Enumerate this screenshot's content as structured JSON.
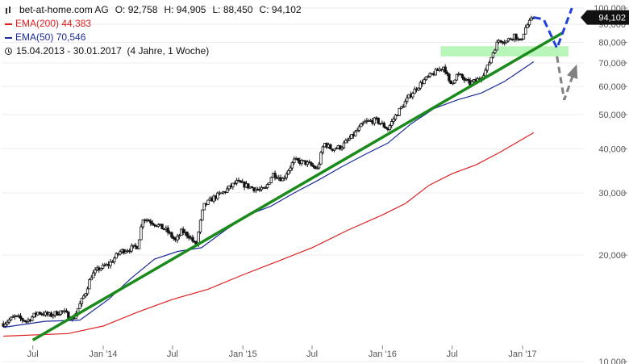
{
  "legend": {
    "symbol": "bet-at-home.com AG",
    "open_label": "O: 92,758",
    "high_label": "H: 94,905",
    "low_label": "L: 88,450",
    "close_label": "C: 94,102",
    "ema200_label": "EMA(200)",
    "ema200_value": "44,383",
    "ema50_label": "EMA(50)",
    "ema50_value": "70,546",
    "period_label": "15.04.2013 - 30.01.2017",
    "period_length": "(4 Jahre, 1 Woche)"
  },
  "price_tag": "94,102",
  "colors": {
    "ema200": "#e02020",
    "ema50": "#1a2a9a",
    "trendline": "#1a8a1a",
    "zone": "#b8f5b8",
    "blue_projection": "#1f3fd8",
    "grey_projection": "#808080",
    "candle": "#111111"
  },
  "chart_data": {
    "type": "candlestick",
    "y_scale": "log",
    "ylim": [
      10,
      100
    ],
    "y_ticks": [
      {
        "value": 10,
        "label": "10,000"
      },
      {
        "value": 20,
        "label": "20,000"
      },
      {
        "value": 30,
        "label": "30,000"
      },
      {
        "value": 40,
        "label": "40,000"
      },
      {
        "value": 50,
        "label": "50,000"
      },
      {
        "value": 60,
        "label": "60,000"
      },
      {
        "value": 70,
        "label": "70,000"
      },
      {
        "value": 80,
        "label": "80,000"
      },
      {
        "value": 90,
        "label": "90,000"
      },
      {
        "value": 100,
        "label": "100,000"
      }
    ],
    "x_range": [
      "2013-04-15",
      "2017-01-30"
    ],
    "x_ticks": [
      {
        "date": "2013-07-01",
        "label": "Jul"
      },
      {
        "date": "2014-01-01",
        "label": "Jan '14"
      },
      {
        "date": "2014-07-01",
        "label": "Jul"
      },
      {
        "date": "2015-01-01",
        "label": "Jan '15"
      },
      {
        "date": "2015-07-01",
        "label": "Jul"
      },
      {
        "date": "2016-01-01",
        "label": "Jan '16"
      },
      {
        "date": "2016-07-01",
        "label": "Jul"
      },
      {
        "date": "2017-01-01",
        "label": "Jan '17"
      }
    ],
    "price_path": [
      [
        "2013-04-15",
        12.8
      ],
      [
        "2013-05-15",
        13.4
      ],
      [
        "2013-06-15",
        13.0
      ],
      [
        "2013-07-15",
        13.8
      ],
      [
        "2013-08-15",
        13.5
      ],
      [
        "2013-09-15",
        13.9
      ],
      [
        "2013-10-15",
        13.2
      ],
      [
        "2013-11-15",
        15.6
      ],
      [
        "2013-12-01",
        17.5
      ],
      [
        "2013-12-20",
        18.3
      ],
      [
        "2014-01-15",
        18.8
      ],
      [
        "2014-02-15",
        20.5
      ],
      [
        "2014-03-15",
        20.9
      ],
      [
        "2014-04-01",
        21.2
      ],
      [
        "2014-04-15",
        25.5
      ],
      [
        "2014-05-15",
        24.6
      ],
      [
        "2014-06-15",
        23.5
      ],
      [
        "2014-07-10",
        21.9
      ],
      [
        "2014-07-25",
        23.4
      ],
      [
        "2014-08-15",
        22.6
      ],
      [
        "2014-09-01",
        21.2
      ],
      [
        "2014-09-20",
        27.5
      ],
      [
        "2014-10-15",
        29.0
      ],
      [
        "2014-11-15",
        30.3
      ],
      [
        "2014-12-15",
        32.2
      ],
      [
        "2015-01-15",
        31.3
      ],
      [
        "2015-02-15",
        30.5
      ],
      [
        "2015-03-01",
        30.8
      ],
      [
        "2015-03-20",
        34.0
      ],
      [
        "2015-04-15",
        32.8
      ],
      [
        "2015-05-15",
        37.0
      ],
      [
        "2015-06-15",
        36.5
      ],
      [
        "2015-07-15",
        35.0
      ],
      [
        "2015-08-01",
        41.5
      ],
      [
        "2015-08-20",
        40.0
      ],
      [
        "2015-09-15",
        40.5
      ],
      [
        "2015-10-15",
        43.5
      ],
      [
        "2015-11-15",
        47.5
      ],
      [
        "2015-12-15",
        48.2
      ],
      [
        "2016-01-15",
        45.5
      ],
      [
        "2016-02-01",
        49.0
      ],
      [
        "2016-02-20",
        52.5
      ],
      [
        "2016-03-15",
        57.0
      ],
      [
        "2016-04-15",
        62.0
      ],
      [
        "2016-05-15",
        65.5
      ],
      [
        "2016-06-10",
        68.5
      ],
      [
        "2016-06-25",
        60.5
      ],
      [
        "2016-07-15",
        65.0
      ],
      [
        "2016-08-15",
        61.0
      ],
      [
        "2016-09-10",
        63.0
      ],
      [
        "2016-09-30",
        67.5
      ],
      [
        "2016-10-20",
        77.0
      ],
      [
        "2016-11-01",
        81.5
      ],
      [
        "2016-11-20",
        80.5
      ],
      [
        "2016-12-10",
        84.0
      ],
      [
        "2016-12-25",
        80.0
      ],
      [
        "2017-01-10",
        88.5
      ],
      [
        "2017-01-30",
        94.1
      ]
    ],
    "ema50": [
      [
        "2013-04-15",
        12.5
      ],
      [
        "2013-08-01",
        13.0
      ],
      [
        "2013-11-01",
        13.1
      ],
      [
        "2014-01-15",
        15.0
      ],
      [
        "2014-03-15",
        17.2
      ],
      [
        "2014-05-15",
        19.5
      ],
      [
        "2014-07-15",
        20.5
      ],
      [
        "2014-09-15",
        21.0
      ],
      [
        "2014-11-15",
        23.5
      ],
      [
        "2015-01-15",
        26.0
      ],
      [
        "2015-03-15",
        27.5
      ],
      [
        "2015-05-15",
        30.0
      ],
      [
        "2015-07-15",
        32.5
      ],
      [
        "2015-09-15",
        35.5
      ],
      [
        "2015-11-15",
        38.5
      ],
      [
        "2016-01-15",
        41.5
      ],
      [
        "2016-03-15",
        47.0
      ],
      [
        "2016-05-15",
        52.0
      ],
      [
        "2016-07-15",
        55.0
      ],
      [
        "2016-09-15",
        57.5
      ],
      [
        "2016-11-15",
        62.0
      ],
      [
        "2017-01-30",
        70.5
      ]
    ],
    "ema200": [
      [
        "2013-04-15",
        11.8
      ],
      [
        "2013-10-01",
        12.0
      ],
      [
        "2014-01-01",
        12.6
      ],
      [
        "2014-04-01",
        13.8
      ],
      [
        "2014-07-01",
        15.0
      ],
      [
        "2014-10-01",
        16.0
      ],
      [
        "2015-01-01",
        17.6
      ],
      [
        "2015-04-01",
        19.2
      ],
      [
        "2015-07-01",
        21.0
      ],
      [
        "2015-10-01",
        23.5
      ],
      [
        "2016-01-01",
        26.0
      ],
      [
        "2016-03-01",
        28.0
      ],
      [
        "2016-05-01",
        31.5
      ],
      [
        "2016-07-01",
        34.0
      ],
      [
        "2016-09-01",
        36.0
      ],
      [
        "2016-11-01",
        39.0
      ],
      [
        "2017-01-30",
        44.4
      ]
    ],
    "trendline": [
      [
        "2013-07-01",
        11.5
      ],
      [
        "2017-04-15",
        85.0
      ]
    ],
    "resistance_zone": {
      "from": "2016-06-01",
      "to": "2017-05-01",
      "low": 73.0,
      "high": 78.0
    },
    "projection_blue": [
      [
        "2017-01-30",
        94.1
      ],
      [
        "2017-02-25",
        93.0
      ],
      [
        "2017-04-01",
        77.0
      ],
      [
        "2017-05-10",
        100.0
      ]
    ],
    "projection_grey": [
      [
        "2017-04-01",
        73.0
      ],
      [
        "2017-04-20",
        55.0
      ],
      [
        "2017-05-20",
        68.0
      ]
    ]
  }
}
